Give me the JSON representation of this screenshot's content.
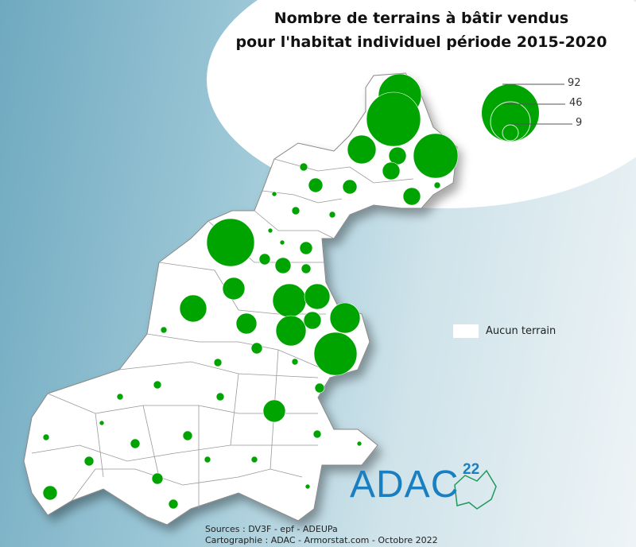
{
  "title_line1": "Nombre de terrains à bâtir vendus",
  "title_line2": "pour l'habitat individuel période 2015-2020",
  "legend": {
    "sizes": [
      92,
      46,
      9
    ],
    "labels": [
      "92",
      "46",
      "9"
    ],
    "none_label": "Aucun terrain",
    "circle_color": "#00a400"
  },
  "logo": {
    "text": "ADAC",
    "number": "22"
  },
  "sources": "Sources : DV3F - epf - ADEUPa",
  "credits": "Cartographie : ADAC - Armorstat.com - Octobre 2022"
}
